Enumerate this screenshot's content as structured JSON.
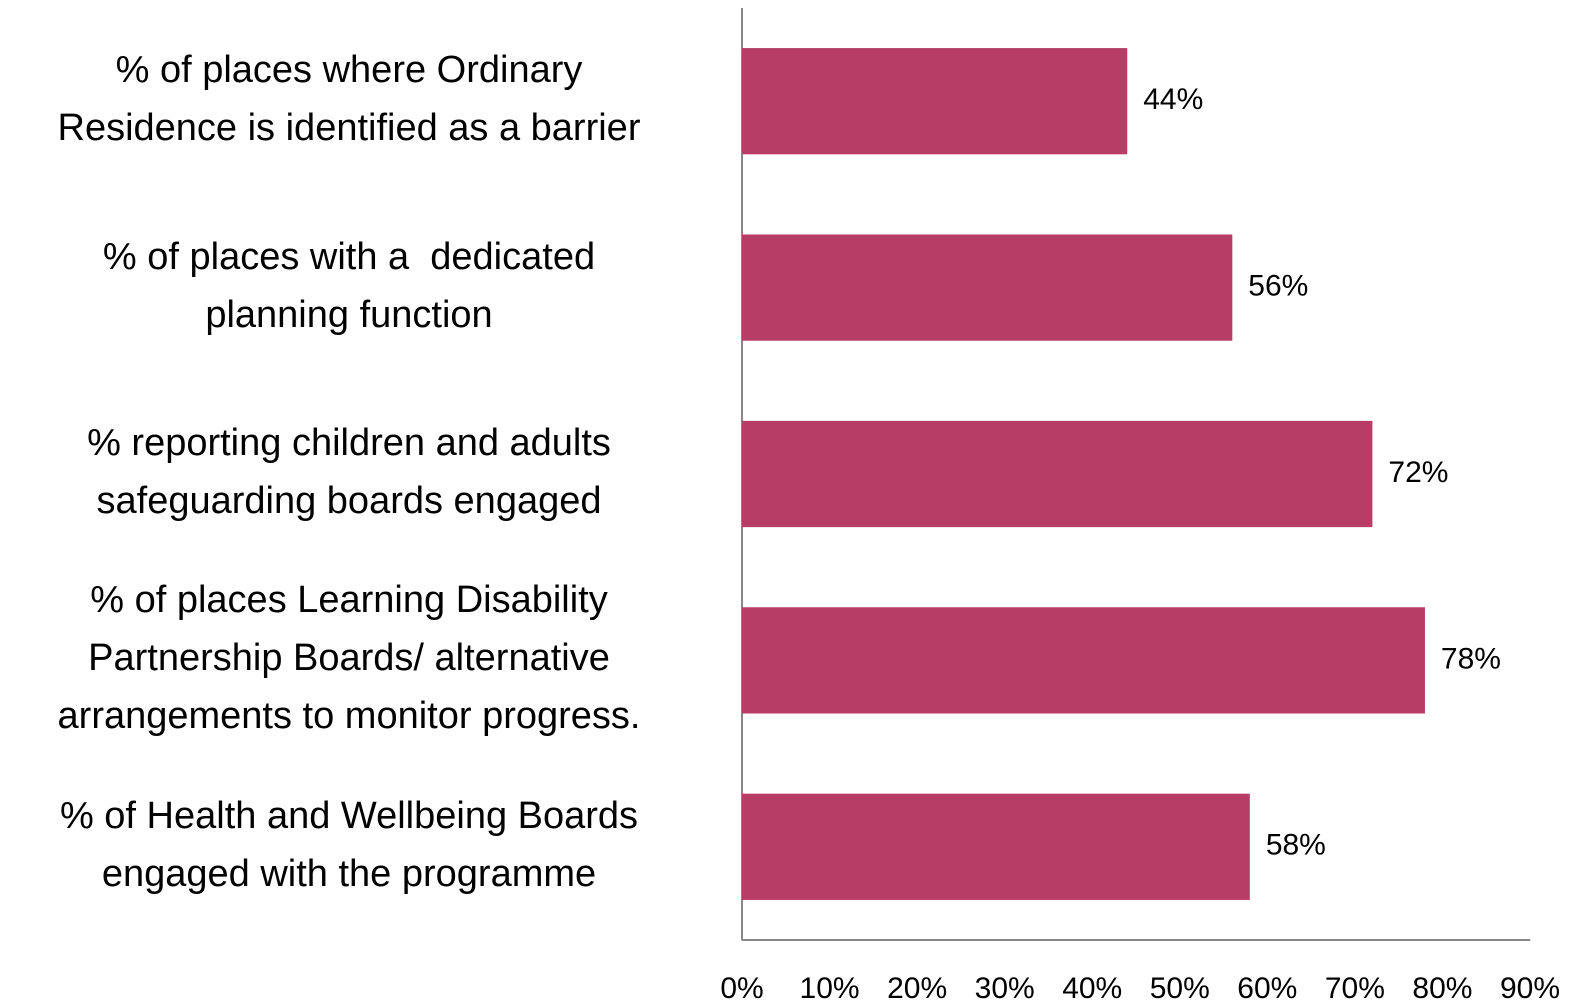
{
  "chart_data": {
    "type": "bar",
    "orientation": "horizontal",
    "categories": [
      "% of places where Ordinary\nResidence is identified as a barrier",
      "% of places with a  dedicated\nplanning function",
      "% reporting children and adults\nsafeguarding boards engaged",
      "% of places Learning Disability\nPartnership Boards/ alternative\narrangements to monitor progress.",
      "% of Health and Wellbeing Boards\nengaged with the programme"
    ],
    "values": [
      44,
      56,
      72,
      78,
      58
    ],
    "value_labels": [
      "44%",
      "56%",
      "72%",
      "78%",
      "58%"
    ],
    "color": "#b83d66",
    "xlim": [
      0,
      90
    ],
    "xticks": [
      {
        "value": 0,
        "label": "0%"
      },
      {
        "value": 10,
        "label": "10%"
      },
      {
        "value": 20,
        "label": "20%"
      },
      {
        "value": 30,
        "label": "30%"
      },
      {
        "value": 40,
        "label": "40%"
      },
      {
        "value": 50,
        "label": "50%"
      },
      {
        "value": 60,
        "label": "60%"
      },
      {
        "value": 70,
        "label": "70%"
      },
      {
        "value": 80,
        "label": "80%"
      },
      {
        "value": 90,
        "label": "90%"
      }
    ],
    "grid": false
  }
}
